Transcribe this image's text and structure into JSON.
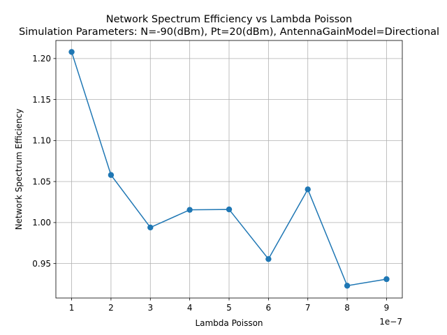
{
  "chart_data": {
    "type": "line",
    "title": "Network Spectrum Efficiency vs Lambda Poisson",
    "subtitle": "Simulation Parameters: N=-90(dBm), Pt=20(dBm), AntennaGainModel=Directional",
    "xlabel": "Lambda Poisson",
    "ylabel": "Network Spectrum Efficiency",
    "x_offset_label": "1e−7",
    "grid": true,
    "xlim": [
      0.6,
      9.4
    ],
    "ylim": [
      0.908,
      1.222
    ],
    "x_ticks": [
      1,
      2,
      3,
      4,
      5,
      6,
      7,
      8,
      9
    ],
    "x_tick_labels": [
      "1",
      "2",
      "3",
      "4",
      "5",
      "6",
      "7",
      "8",
      "9"
    ],
    "y_ticks": [
      0.95,
      1.0,
      1.05,
      1.1,
      1.15,
      1.2
    ],
    "y_tick_labels": [
      "0.95",
      "1.00",
      "1.05",
      "1.10",
      "1.15",
      "1.20"
    ],
    "color": "#1f77b4",
    "series": [
      {
        "x": [
          1,
          2,
          3,
          4,
          5,
          6,
          7,
          8,
          9
        ],
        "values": [
          1.208,
          1.058,
          0.994,
          1.0155,
          1.016,
          0.9555,
          1.0405,
          0.923,
          0.931
        ]
      }
    ]
  }
}
